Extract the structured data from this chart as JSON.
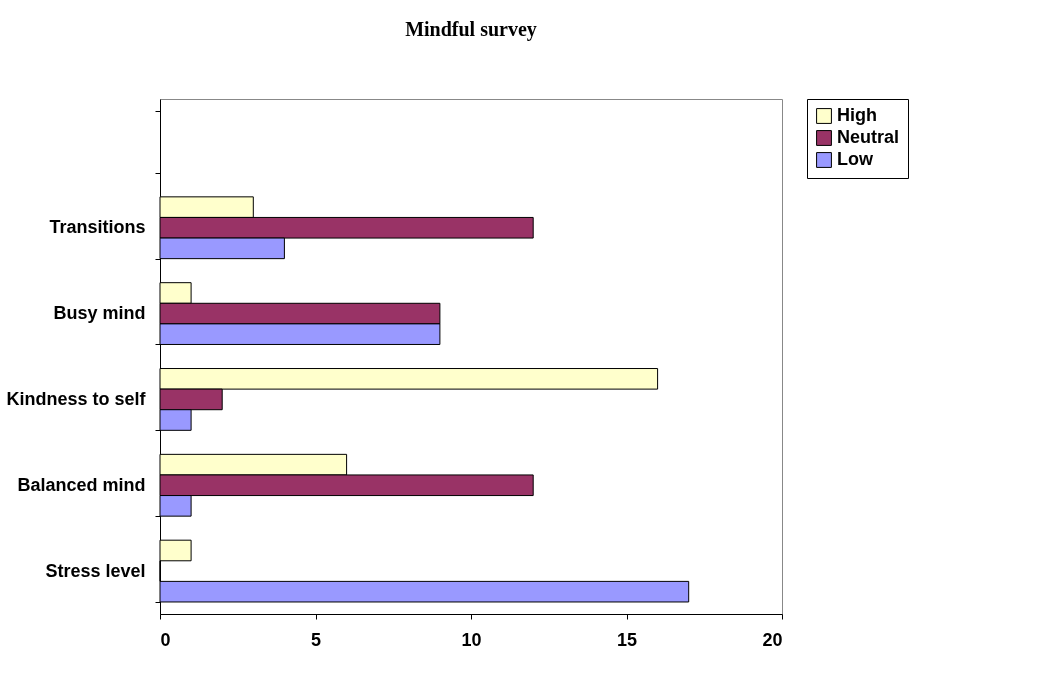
{
  "chart_data": {
    "type": "bar",
    "orientation": "horizontal",
    "title": "Mindful survey",
    "categories": [
      null,
      "Transitions",
      "Busy mind",
      "Kindness to self",
      "Balanced mind",
      "Stress level"
    ],
    "series": [
      {
        "name": "High",
        "color": "#ffffcc",
        "values": [
          null,
          3,
          1,
          16,
          6,
          1
        ]
      },
      {
        "name": "Neutral",
        "color": "#993366",
        "values": [
          null,
          12,
          9,
          2,
          12,
          0
        ]
      },
      {
        "name": "Low",
        "color": "#9999ff",
        "values": [
          null,
          4,
          9,
          1,
          1,
          17
        ]
      }
    ],
    "xlim": [
      0,
      20
    ],
    "xticks": [
      0,
      5,
      10,
      15,
      20
    ],
    "grid": false,
    "legend": "right"
  }
}
